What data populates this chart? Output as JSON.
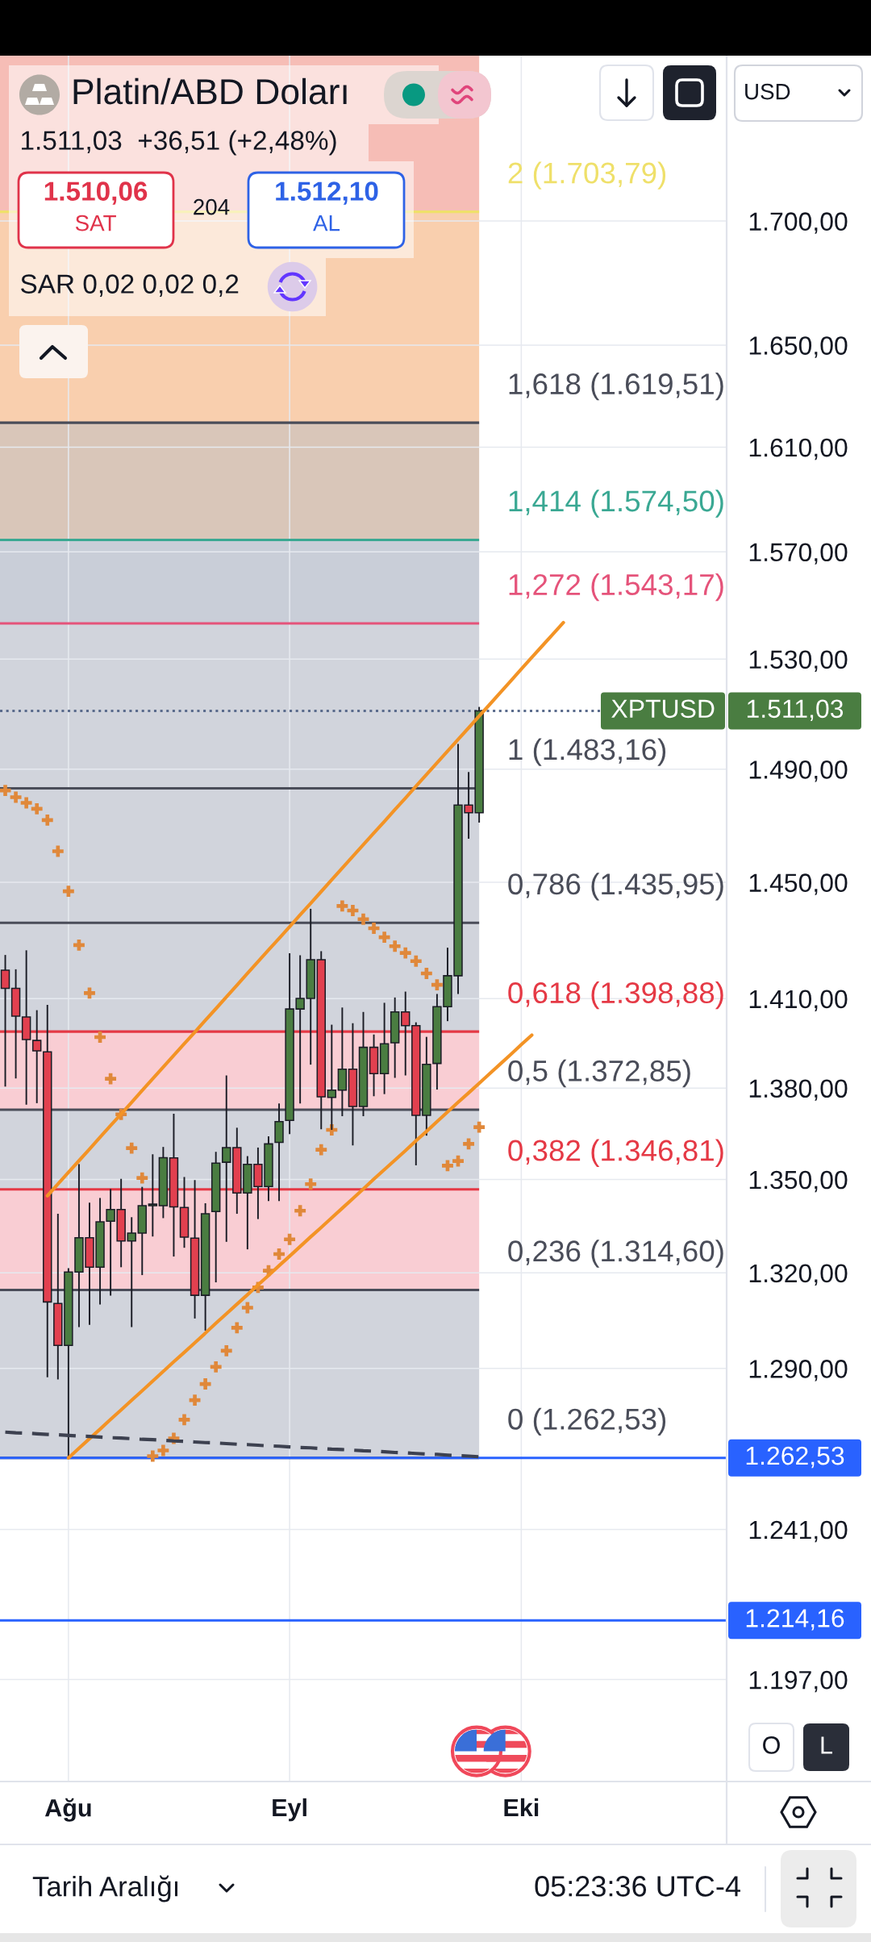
{
  "chart_data": {
    "type": "candlestick",
    "title": "Platin/ABD Doları",
    "subtitle": "1.511,03  +36,51 (+2,48%)",
    "categories": [
      null,
      null,
      null,
      null,
      null,
      null,
      "Ağu",
      null,
      null,
      null,
      null,
      null,
      null,
      null,
      null,
      null,
      null,
      null,
      null,
      null,
      null,
      null,
      null,
      null,
      null,
      null,
      null,
      "Eyl",
      null,
      null,
      null,
      null,
      null,
      null,
      null,
      null,
      null,
      null,
      null,
      null,
      null,
      null,
      null,
      null,
      null,
      null,
      null,
      null,
      null,
      "Eki",
      null,
      null,
      null,
      null,
      null,
      null,
      null,
      null,
      null,
      null,
      null,
      null,
      null,
      null,
      null,
      null,
      null,
      null,
      null
    ],
    "ohlc": [
      [
        1419.7,
        1424.9,
        1380.5,
        1413.5
      ],
      [
        1413.5,
        1420.0,
        1383.2,
        1404.1
      ],
      [
        1403.8,
        1426.5,
        1374.5,
        1396.2
      ],
      [
        1395.9,
        1406.1,
        1375.0,
        1392.4
      ],
      [
        1392.1,
        1407.9,
        1287.3,
        1310.8
      ],
      [
        1310.3,
        1338.9,
        1286.6,
        1297.2
      ],
      [
        1297.2,
        1321.5,
        1262.53,
        1320.3
      ],
      [
        1320.3,
        1355.0,
        1302.9,
        1331.2
      ],
      [
        1331.2,
        1342.5,
        1303.6,
        1321.8
      ],
      [
        1321.8,
        1344.0,
        1310.0,
        1336.3
      ],
      [
        1336.5,
        1346.9,
        1312.8,
        1340.3
      ],
      [
        1340.3,
        1350.2,
        1321.8,
        1330.2
      ],
      [
        1330.2,
        1337.8,
        1302.9,
        1332.7
      ],
      [
        1332.7,
        1347.6,
        1319.3,
        1341.5
      ],
      [
        1341.5,
        1358.2,
        1331.6,
        1342.0
      ],
      [
        1341.5,
        1360.6,
        1337.5,
        1357.1
      ],
      [
        1357.0,
        1371.5,
        1325.2,
        1341.1
      ],
      [
        1340.9,
        1350.8,
        1328.0,
        1331.4
      ],
      [
        1331.1,
        1349.8,
        1305.6,
        1312.9
      ],
      [
        1312.9,
        1342.3,
        1301.8,
        1338.9
      ],
      [
        1339.6,
        1359.0,
        1317.0,
        1355.3
      ],
      [
        1355.6,
        1384.2,
        1329.9,
        1360.4
      ],
      [
        1360.4,
        1366.9,
        1338.9,
        1345.6
      ],
      [
        1345.6,
        1357.6,
        1327.5,
        1354.9
      ],
      [
        1354.9,
        1360.4,
        1337.2,
        1347.7
      ],
      [
        1347.7,
        1364.1,
        1343.0,
        1361.6
      ],
      [
        1362.1,
        1374.9,
        1343.0,
        1368.9
      ],
      [
        1369.3,
        1425.5,
        1364.8,
        1406.5
      ],
      [
        1406.5,
        1424.8,
        1374.9,
        1410.1
      ],
      [
        1410.1,
        1440.8,
        1387.8,
        1423.3
      ],
      [
        1423.3,
        1426.2,
        1366.4,
        1377.1
      ],
      [
        1376.9,
        1401.2,
        1366.2,
        1379.3
      ],
      [
        1379.3,
        1407.0,
        1370.7,
        1386.3
      ],
      [
        1386.3,
        1401.7,
        1361.1,
        1373.9
      ],
      [
        1373.9,
        1405.5,
        1370.7,
        1393.6
      ],
      [
        1393.6,
        1397.9,
        1377.3,
        1384.8
      ],
      [
        1384.8,
        1408.6,
        1378.0,
        1394.8
      ],
      [
        1395.1,
        1410.4,
        1383.4,
        1405.5
      ],
      [
        1405.5,
        1412.4,
        1384.2,
        1400.9
      ],
      [
        1400.9,
        1402.0,
        1354.6,
        1371.0
      ],
      [
        1371.0,
        1397.1,
        1364.3,
        1387.9
      ],
      [
        1388.2,
        1411.6,
        1379.5,
        1407.3
      ],
      [
        1407.3,
        1427.4,
        1402.4,
        1417.8
      ],
      [
        1417.8,
        1499.1,
        1411.6,
        1477.2
      ],
      [
        1477.2,
        1489.0,
        1465.3,
        1474.52
      ],
      [
        1474.5,
        1512.5,
        1471.0,
        1511.03
      ],
      null,
      null,
      null,
      null,
      null,
      null,
      null,
      null,
      null,
      null,
      null,
      null,
      null,
      null,
      null,
      null,
      null,
      null,
      null,
      null,
      null,
      null,
      null
    ],
    "colors": [
      "#e2404f",
      "#e2404f",
      "#e2404f",
      "#e2404f",
      "#e2404f",
      "#e2404f",
      "#4a7d41",
      "#4a7d41",
      "#e2404f",
      "#4a7d41",
      "#4a7d41",
      "#e2404f",
      "#4a7d41",
      "#4a7d41",
      "#4a7d41",
      "#4a7d41",
      "#e2404f",
      "#e2404f",
      "#e2404f",
      "#4a7d41",
      "#4a7d41",
      "#4a7d41",
      "#e2404f",
      "#4a7d41",
      "#e2404f",
      "#4a7d41",
      "#4a7d41",
      "#4a7d41",
      "#4a7d41",
      "#4a7d41",
      "#e2404f",
      "#4a7d41",
      "#4a7d41",
      "#e2404f",
      "#4a7d41",
      "#e2404f",
      "#4a7d41",
      "#4a7d41",
      "#e2404f",
      "#e2404f",
      "#4a7d41",
      "#4a7d41",
      "#4a7d41",
      "#4a7d41",
      "#e2404f",
      "#4a7d41",
      null,
      null,
      null,
      null,
      null,
      null,
      null,
      null,
      null,
      null,
      null,
      null,
      null,
      null,
      null,
      null,
      null,
      null,
      null,
      null,
      null,
      null,
      null
    ],
    "series": [
      {
        "type": "scatter",
        "color": "#e0883a",
        "marker": "cross",
        "values": [
          1482.4,
          1480.0,
          1478.0,
          1475.9,
          1471.9,
          1460.9,
          1446.9,
          1428.3,
          1411.9,
          1397.0,
          1383.1,
          1371.3,
          1360.2,
          1350.5,
          1263.1,
          1264.8,
          1268.5,
          1274.2,
          1280.2,
          1285.2,
          1290.5,
          1295.5,
          1302.7,
          1309.0,
          1315.4,
          1320.7,
          1326.0,
          1330.7,
          1339.9,
          1348.5,
          1359.7,
          1366.2,
          1441.8,
          1440.2,
          1437.2,
          1434.1,
          1431.0,
          1427.9,
          1425.6,
          1422.8,
          1418.6,
          1414.7,
          1354.5,
          1356.0,
          1361.6,
          1367.1,
          null,
          null,
          null,
          null,
          null,
          null,
          null,
          null,
          null,
          null,
          null,
          null,
          null,
          null,
          null,
          null,
          null,
          null,
          null,
          null,
          null,
          null,
          null
        ]
      },
      {
        "type": "line",
        "color": "#f39325",
        "values": [
          null,
          null,
          null,
          null,
          1344.7,
          1348.5,
          1352.3,
          1356.1,
          1359.9,
          1363.8,
          1367.6,
          1371.4,
          1375.3,
          1379.2,
          1383.1,
          1387.0,
          1390.9,
          1394.8,
          1398.7,
          1402.7,
          1406.6,
          1410.6,
          1414.6,
          1418.6,
          1422.6,
          1426.6,
          1430.6,
          1434.6,
          1438.7,
          1442.7,
          1446.8,
          1450.9,
          1455.0,
          1459.1,
          1463.2,
          1467.3,
          1471.4,
          1475.6,
          1479.7,
          1483.9,
          1488.1,
          1492.3,
          1496.5,
          1500.7,
          1504.9,
          1509.2,
          1513.4,
          1517.7,
          1522.0,
          1526.3,
          1530.6,
          1534.9,
          1539.2,
          1543.5,
          null,
          null,
          null,
          null,
          null,
          null,
          null,
          null,
          null,
          null,
          null,
          null,
          null,
          null,
          null
        ]
      },
      {
        "type": "line",
        "color": "#f39325",
        "values": [
          null,
          null,
          null,
          null,
          null,
          null,
          1262.53,
          1265.5,
          1268.4,
          1271.3,
          1274.3,
          1277.2,
          1280.2,
          1283.1,
          1286.1,
          1289.1,
          1292.1,
          1295.0,
          1298.0,
          1301.0,
          1304.1,
          1307.1,
          1310.1,
          1313.1,
          1316.2,
          1319.2,
          1322.3,
          1325.3,
          1328.4,
          1331.5,
          1334.5,
          1337.6,
          1340.7,
          1343.8,
          1346.9,
          1350.1,
          1353.2,
          1356.3,
          1359.4,
          1362.6,
          1365.7,
          1368.9,
          1372.1,
          1375.3,
          1378.4,
          1381.6,
          1384.8,
          1388.0,
          1391.2,
          1394.5,
          1397.7,
          null,
          null,
          null,
          null,
          null,
          null,
          null,
          null,
          null,
          null,
          null,
          null,
          null,
          null,
          null,
          null,
          null,
          null
        ]
      },
      {
        "type": "line",
        "color": "#3d4150",
        "line_style": "dashed",
        "values": [
          1270.4,
          1270.2,
          1270.1,
          1269.9,
          1269.7,
          1269.6,
          1269.4,
          1269.2,
          1269.1,
          1268.9,
          1268.7,
          1268.6,
          1268.4,
          1268.2,
          1268.1,
          1267.9,
          1267.7,
          1267.6,
          1267.4,
          1267.2,
          1267.1,
          1266.9,
          1266.7,
          1266.6,
          1266.4,
          1266.2,
          1266.1,
          1265.9,
          1265.7,
          1265.6,
          1265.4,
          1265.2,
          1265.1,
          1264.9,
          1264.7,
          1264.6,
          1264.4,
          1264.2,
          1264.1,
          1263.9,
          1263.7,
          1263.6,
          1263.4,
          1263.2,
          1263.1,
          1262.9,
          null,
          null,
          null,
          null,
          null,
          null,
          null,
          null,
          null,
          null,
          null,
          null,
          null,
          null,
          null,
          null,
          null,
          null,
          null,
          null,
          null,
          null,
          null
        ]
      }
    ],
    "ylim": [
      1168,
      1769
    ],
    "log": true,
    "yticks": [
      {
        "value": 1197,
        "label": "1.197,00"
      },
      {
        "value": 1241,
        "label": "1.241,00"
      },
      {
        "value": 1290,
        "label": "1.290,00"
      },
      {
        "value": 1320,
        "label": "1.320,00"
      },
      {
        "value": 1350,
        "label": "1.350,00"
      },
      {
        "value": 1380,
        "label": "1.380,00"
      },
      {
        "value": 1410,
        "label": "1.410,00"
      },
      {
        "value": 1450,
        "label": "1.450,00"
      },
      {
        "value": 1490,
        "label": "1.490,00"
      },
      {
        "value": 1530,
        "label": "1.530,00"
      },
      {
        "value": 1570,
        "label": "1.570,00"
      },
      {
        "value": 1610,
        "label": "1.610,00"
      },
      {
        "value": 1650,
        "label": "1.650,00"
      },
      {
        "value": 1700,
        "label": "1.700,00"
      }
    ],
    "grid": true,
    "bands": [
      {
        "axis": "y",
        "from": 1703.79,
        "to": 1769,
        "color": "#f6bdb6"
      },
      {
        "axis": "y",
        "from": 1619.51,
        "to": 1703.79,
        "color": "#f9cfae"
      },
      {
        "axis": "y",
        "from": 1574.5,
        "to": 1619.51,
        "color": "#d9c6b9"
      },
      {
        "axis": "y",
        "from": 1543.17,
        "to": 1574.5,
        "color": "#c9ced8"
      },
      {
        "axis": "y",
        "from": 1398.88,
        "to": 1543.17,
        "color": "#d1d4dc"
      },
      {
        "axis": "y",
        "from": 1372.85,
        "to": 1398.88,
        "color": "#f9cdd3"
      },
      {
        "axis": "y",
        "from": 1346.81,
        "to": 1372.85,
        "color": "#d1d4dc"
      },
      {
        "axis": "y",
        "from": 1314.6,
        "to": 1346.81,
        "color": "#f9cdd3"
      },
      {
        "axis": "y",
        "from": 1262.53,
        "to": 1314.6,
        "color": "#d1d4dc"
      }
    ],
    "ref_lines": [
      {
        "axis": "y",
        "value": 1703.79,
        "label": "2 (1.703,79)",
        "color": "#efe06a"
      },
      {
        "axis": "y",
        "value": 1619.51,
        "label": "1,618 (1.619,51)",
        "color": "#4a4d59"
      },
      {
        "axis": "y",
        "value": 1574.5,
        "label": "1,414 (1.574,50)",
        "color": "#3aa893"
      },
      {
        "axis": "y",
        "value": 1543.17,
        "label": "1,272 (1.543,17)",
        "color": "#e5537a"
      },
      {
        "axis": "y",
        "value": 1483.16,
        "label": "1 (1.483,16)",
        "color": "#4a4d59"
      },
      {
        "axis": "y",
        "value": 1435.95,
        "label": "0,786 (1.435,95)",
        "color": "#4a4d59"
      },
      {
        "axis": "y",
        "value": 1398.88,
        "label": "0,618 (1.398,88)",
        "color": "#e53945"
      },
      {
        "axis": "y",
        "value": 1372.85,
        "label": "0,5 (1.372,85)",
        "color": "#4a4d59"
      },
      {
        "axis": "y",
        "value": 1346.81,
        "label": "0,382 (1.346,81)",
        "color": "#e53945"
      },
      {
        "axis": "y",
        "value": 1314.6,
        "label": "0,236 (1.314,60)",
        "color": "#4a4d59"
      },
      {
        "axis": "y",
        "value": 1262.53,
        "label": "0 (1.262,53)",
        "color": "#4a4d59"
      },
      {
        "axis": "y",
        "value": 1511.03,
        "color": "#5a6b8c",
        "line_style": "dotted"
      },
      {
        "axis": "y",
        "value": 1262.53,
        "color": "#2962ff"
      },
      {
        "axis": "y",
        "value": 1214.16,
        "color": "#2962ff"
      }
    ],
    "annotations": [
      "1.510,06",
      "SAT",
      "204",
      "1.512,10",
      "AL",
      "SAR 0,02 0,02 0,2",
      "USD",
      "O",
      "L",
      "Tarih Aralığı",
      "05:23:36 UTC-4",
      "XPTUSD",
      "1.511,03",
      "1.262,53",
      "1.214,16"
    ]
  }
}
